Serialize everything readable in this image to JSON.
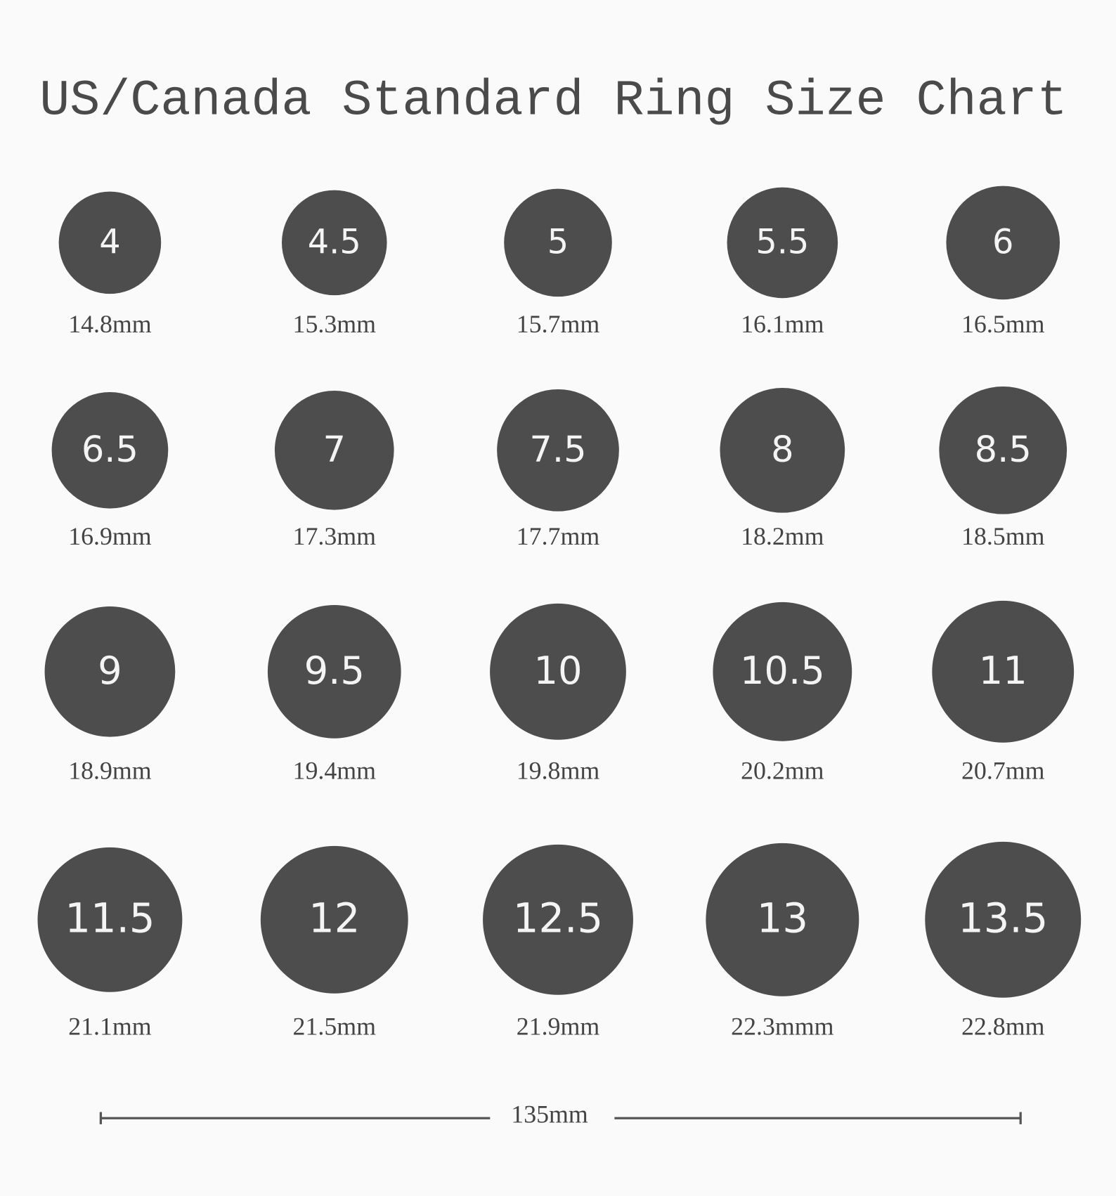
{
  "title": "US/Canada Standard Ring Size Chart",
  "rings": [
    {
      "size": "4",
      "diameter": "14.8mm"
    },
    {
      "size": "4.5",
      "diameter": "15.3mm"
    },
    {
      "size": "5",
      "diameter": "15.7mm"
    },
    {
      "size": "5.5",
      "diameter": "16.1mm"
    },
    {
      "size": "6",
      "diameter": "16.5mm"
    },
    {
      "size": "6.5",
      "diameter": "16.9mm"
    },
    {
      "size": "7",
      "diameter": "17.3mm"
    },
    {
      "size": "7.5",
      "diameter": "17.7mm"
    },
    {
      "size": "8",
      "diameter": "18.2mm"
    },
    {
      "size": "8.5",
      "diameter": "18.5mm"
    },
    {
      "size": "9",
      "diameter": "18.9mm"
    },
    {
      "size": "9.5",
      "diameter": "19.4mm"
    },
    {
      "size": "10",
      "diameter": "19.8mm"
    },
    {
      "size": "10.5",
      "diameter": "20.2mm"
    },
    {
      "size": "11",
      "diameter": "20.7mm"
    },
    {
      "size": "11.5",
      "diameter": "21.1mm"
    },
    {
      "size": "12",
      "diameter": "21.5mm"
    },
    {
      "size": "12.5",
      "diameter": "21.9mm"
    },
    {
      "size": "13",
      "diameter": "22.3mmm"
    },
    {
      "size": "13.5",
      "diameter": "22.8mm"
    }
  ],
  "scale_label": "135mm"
}
